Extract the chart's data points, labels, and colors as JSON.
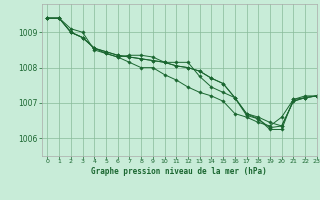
{
  "background_color": "#c8ecd8",
  "grid_color": "#88bb99",
  "line_color": "#1a6630",
  "marker_color": "#1a6630",
  "text_color": "#1a6630",
  "xlabel": "Graphe pression niveau de la mer (hPa)",
  "xlim": [
    -0.5,
    23
  ],
  "ylim": [
    1005.5,
    1009.8
  ],
  "yticks": [
    1006,
    1007,
    1008,
    1009
  ],
  "xticks": [
    0,
    1,
    2,
    3,
    4,
    5,
    6,
    7,
    8,
    9,
    10,
    11,
    12,
    13,
    14,
    15,
    16,
    17,
    18,
    19,
    20,
    21,
    22,
    23
  ],
  "series": [
    [
      1009.4,
      1009.4,
      1009.1,
      1009.0,
      1008.5,
      1008.4,
      1008.3,
      1008.35,
      1008.35,
      1008.3,
      1008.15,
      1008.15,
      1008.15,
      1007.75,
      1007.45,
      1007.3,
      1007.15,
      1006.65,
      1006.55,
      1006.25,
      1006.25,
      1007.1,
      1007.2,
      1007.2
    ],
    [
      1009.4,
      1009.4,
      1009.0,
      1008.85,
      1008.55,
      1008.4,
      1008.3,
      1008.15,
      1008.0,
      1008.0,
      1007.8,
      1007.65,
      1007.45,
      1007.3,
      1007.2,
      1007.05,
      1006.7,
      1006.6,
      1006.45,
      1006.35,
      1006.6,
      1007.1,
      1007.15,
      1007.2
    ],
    [
      1009.4,
      1009.4,
      1009.0,
      1008.85,
      1008.55,
      1008.45,
      1008.35,
      1008.3,
      1008.25,
      1008.2,
      1008.15,
      1008.05,
      1008.0,
      1007.9,
      1007.7,
      1007.55,
      1007.15,
      1006.7,
      1006.6,
      1006.45,
      1006.35,
      1007.05,
      1007.15,
      1007.2
    ],
    [
      1009.4,
      1009.4,
      1009.0,
      1008.85,
      1008.55,
      1008.45,
      1008.35,
      1008.3,
      1008.25,
      1008.2,
      1008.15,
      1008.05,
      1008.0,
      1007.9,
      1007.7,
      1007.55,
      1007.15,
      1006.7,
      1006.55,
      1006.3,
      1006.35,
      1007.05,
      1007.15,
      1007.2
    ]
  ]
}
